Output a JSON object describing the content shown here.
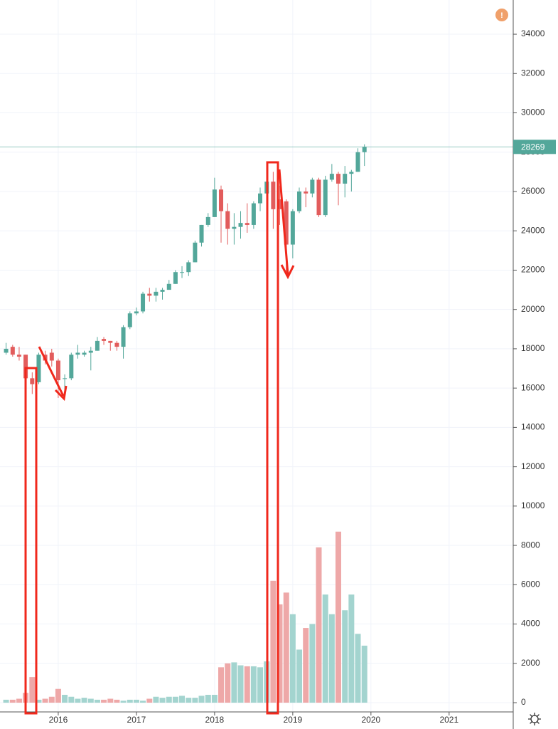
{
  "chart_data": {
    "type": "candlestick",
    "x": [
      2015.333,
      2015.417,
      2015.5,
      2015.583,
      2015.667,
      2015.75,
      2015.833,
      2015.917,
      2016,
      2016.083,
      2016.167,
      2016.25,
      2016.333,
      2016.417,
      2016.5,
      2016.583,
      2016.667,
      2016.75,
      2016.833,
      2016.917,
      2017,
      2017.083,
      2017.167,
      2017.25,
      2017.333,
      2017.417,
      2017.5,
      2017.583,
      2017.667,
      2017.75,
      2017.833,
      2017.917,
      2018,
      2018.083,
      2018.167,
      2018.25,
      2018.333,
      2018.417,
      2018.5,
      2018.583,
      2018.667,
      2018.75,
      2018.833,
      2018.917,
      2019,
      2019.083,
      2019.167,
      2019.25,
      2019.333,
      2019.417,
      2019.5,
      2019.583,
      2019.667,
      2019.75,
      2019.833,
      2019.917
    ],
    "open": [
      17800,
      18100,
      17700,
      17700,
      16500,
      16300,
      17700,
      17800,
      17400,
      16500,
      16500,
      17700,
      17700,
      17800,
      17900,
      18500,
      18400,
      18300,
      18100,
      19100,
      19800,
      19900,
      20800,
      20700,
      20900,
      21000,
      21300,
      21900,
      21900,
      22400,
      23400,
      24300,
      24700,
      26100,
      25000,
      24100,
      24200,
      24400,
      24300,
      25400,
      25900,
      26500,
      25600,
      25500,
      23300,
      25000,
      26000,
      25900,
      26600,
      24800,
      26600,
      26900,
      26400,
      26900,
      27000,
      28000
    ],
    "high": [
      18300,
      18200,
      18100,
      17700,
      16800,
      17800,
      17900,
      18000,
      17500,
      16700,
      17800,
      18200,
      17900,
      18100,
      18600,
      18600,
      18400,
      18400,
      19200,
      19900,
      20100,
      20900,
      21100,
      21100,
      21100,
      21500,
      22000,
      22200,
      22500,
      23500,
      24300,
      24900,
      26700,
      26300,
      25400,
      24900,
      25000,
      25400,
      25500,
      26200,
      26800,
      27000,
      26300,
      25600,
      25100,
      26200,
      26200,
      26700,
      26700,
      26800,
      27400,
      27000,
      27300,
      27100,
      28200,
      28400
    ],
    "low": [
      17700,
      17600,
      17400,
      15300,
      15700,
      16200,
      17200,
      17100,
      15500,
      15700,
      16400,
      17500,
      17600,
      16900,
      17900,
      18200,
      17900,
      17900,
      17500,
      19000,
      19700,
      19800,
      20400,
      20400,
      20500,
      21000,
      21300,
      21600,
      21700,
      22400,
      23200,
      24200,
      24700,
      23400,
      23300,
      23300,
      23600,
      23900,
      24100,
      25000,
      25700,
      24100,
      24300,
      21700,
      22600,
      24900,
      25200,
      25700,
      24700,
      24700,
      26500,
      25300,
      25700,
      26000,
      27000,
      27300
    ],
    "close": [
      18000,
      17700,
      17600,
      16500,
      16200,
      17700,
      17400,
      17400,
      16400,
      16500,
      17700,
      17800,
      17800,
      17900,
      18400,
      18400,
      18300,
      18100,
      19100,
      19800,
      19900,
      20800,
      20700,
      20900,
      21000,
      21300,
      21900,
      21900,
      22400,
      23400,
      24300,
      24700,
      26100,
      25000,
      24100,
      24200,
      24400,
      24300,
      25400,
      25900,
      26500,
      25100,
      25100,
      23300,
      25000,
      26000,
      25900,
      26600,
      24800,
      26600,
      26900,
      26400,
      26900,
      27000,
      28000,
      28269
    ],
    "volume": [
      150,
      150,
      200,
      500,
      1300,
      150,
      200,
      300,
      700,
      400,
      300,
      200,
      250,
      200,
      150,
      150,
      200,
      150,
      100,
      150,
      150,
      100,
      200,
      300,
      250,
      300,
      300,
      350,
      250,
      250,
      350,
      400,
      400,
      1800,
      2000,
      2050,
      1900,
      1850,
      1850,
      1800,
      2100,
      6200,
      5000,
      5600,
      4500,
      2700,
      3800,
      4000,
      7900,
      5500,
      4500,
      8700,
      4700,
      5500,
      3500,
      2900
    ],
    "up_color": "#53a79a",
    "down_color": "#e25c5c",
    "volume_up_color": "#a3d4cf",
    "volume_down_color": "#eea8a8",
    "xlim": [
      2015.255,
      2021.82
    ],
    "xticks": [
      2016,
      2017,
      2018,
      2019,
      2020,
      2021
    ],
    "ylim": [
      -470,
      35740
    ],
    "yticks": [
      0,
      2000,
      4000,
      6000,
      8000,
      10000,
      12000,
      14000,
      16000,
      18000,
      20000,
      22000,
      24000,
      26000,
      28000,
      30000,
      32000,
      34000
    ],
    "grid": true,
    "last_price": 28269,
    "alert": "!"
  }
}
